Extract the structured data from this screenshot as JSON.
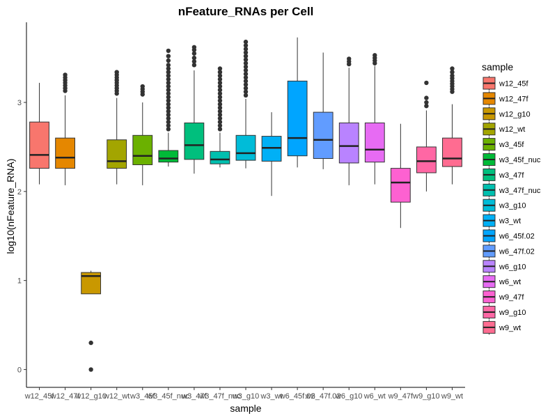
{
  "chart_data": {
    "type": "box",
    "title": "nFeature_RNAs per Cell",
    "xlabel": "sample",
    "ylabel": "log10(nFeature_RNA)",
    "ylim": [
      -0.2,
      3.9
    ],
    "yticks": [
      0,
      1,
      2,
      3
    ],
    "legend_title": "sample",
    "legend_position": "right",
    "grid": false,
    "categories": [
      "w12_45f",
      "w12_47f",
      "w12_g10",
      "w12_wt",
      "w3_45f",
      "w3_45f_nuc",
      "w3_47f",
      "w3_47f_nuc",
      "w3_g10",
      "w3_wt",
      "w6_45f.02",
      "w6_47f.02",
      "w6_g10",
      "w6_wt",
      "w9_47f",
      "w9_g10",
      "w9_wt"
    ],
    "x_tick_labels": [
      "w12_45f",
      "w12_47f",
      "w12_g10",
      "w12_wt",
      "w3_45f",
      "w3_45f_nuc",
      "w3_47f",
      "w3_47f_nuc",
      "w3_g10",
      "w3_wt",
      "w6_45f.02",
      "w6_47f.02",
      "w6_g10",
      "w6_wt",
      "w9_47f",
      "w9_g10",
      "w9_wt"
    ],
    "legend_labels": [
      "w12_45f",
      "w12_47f",
      "w12_g10",
      "w12_wt",
      "w3_45f",
      "w3_45f_nuc",
      "w3_47f",
      "w3_47f_nuc",
      "w3_g10",
      "w3_wt",
      "w6_45f.02",
      "w6_47f.02",
      "w6_g10",
      "w6_wt",
      "w9_47f",
      "w9_g10",
      "w9_wt"
    ],
    "colors": [
      "#F8766D",
      "#E58700",
      "#C99800",
      "#A3A500",
      "#6BB100",
      "#00BA38",
      "#00BF7D",
      "#00C0AF",
      "#00BCD8",
      "#00B0F6",
      "#00A5FF",
      "#619CFF",
      "#B983FF",
      "#E76BF3",
      "#FD61D1",
      "#FF67A4",
      "#FF6C91"
    ],
    "boxes": [
      {
        "whisker_low": 2.08,
        "q1": 2.26,
        "median": 2.41,
        "q3": 2.78,
        "whisker_high": 3.22,
        "outliers": []
      },
      {
        "whisker_low": 2.07,
        "q1": 2.26,
        "median": 2.38,
        "q3": 2.6,
        "whisker_high": 3.08,
        "outliers": [
          3.13,
          3.16,
          3.19,
          3.22,
          3.25,
          3.28,
          3.31
        ]
      },
      {
        "whisker_low": 0.85,
        "q1": 0.85,
        "median": 1.05,
        "q3": 1.09,
        "whisker_high": 1.11,
        "outliers": [
          0.3,
          0.0
        ]
      },
      {
        "whisker_low": 2.08,
        "q1": 2.26,
        "median": 2.34,
        "q3": 2.58,
        "whisker_high": 3.05,
        "outliers": [
          3.1,
          3.13,
          3.16,
          3.19,
          3.22,
          3.25,
          3.28,
          3.31,
          3.34
        ]
      },
      {
        "whisker_low": 2.07,
        "q1": 2.3,
        "median": 2.4,
        "q3": 2.63,
        "whisker_high": 3.0,
        "outliers": [
          3.09,
          3.12,
          3.15,
          3.18
        ]
      },
      {
        "whisker_low": 2.28,
        "q1": 2.33,
        "median": 2.37,
        "q3": 2.46,
        "whisker_high": 2.66,
        "outliers": [
          2.7,
          2.74,
          2.78,
          2.82,
          2.86,
          2.9,
          2.94,
          2.98,
          3.02,
          3.06,
          3.1,
          3.14,
          3.18,
          3.22,
          3.26,
          3.3,
          3.34,
          3.38,
          3.42,
          3.47,
          3.52,
          3.58
        ]
      },
      {
        "whisker_low": 2.2,
        "q1": 2.36,
        "median": 2.52,
        "q3": 2.77,
        "whisker_high": 3.36,
        "outliers": [
          3.42,
          3.46,
          3.5,
          3.55,
          3.59,
          3.62
        ]
      },
      {
        "whisker_low": 2.27,
        "q1": 2.31,
        "median": 2.36,
        "q3": 2.45,
        "whisker_high": 2.66,
        "outliers": [
          2.7,
          2.74,
          2.78,
          2.82,
          2.86,
          2.9,
          2.94,
          2.98,
          3.02,
          3.06,
          3.1,
          3.14,
          3.18,
          3.22,
          3.26,
          3.3,
          3.34,
          3.38
        ]
      },
      {
        "whisker_low": 2.26,
        "q1": 2.35,
        "median": 2.43,
        "q3": 2.63,
        "whisker_high": 3.04,
        "outliers": [
          3.08,
          3.12,
          3.16,
          3.2,
          3.24,
          3.28,
          3.32,
          3.36,
          3.4,
          3.44,
          3.48,
          3.52,
          3.56,
          3.6,
          3.64,
          3.68
        ]
      },
      {
        "whisker_low": 1.95,
        "q1": 2.34,
        "median": 2.49,
        "q3": 2.62,
        "whisker_high": 2.89,
        "outliers": []
      },
      {
        "whisker_low": 2.27,
        "q1": 2.4,
        "median": 2.6,
        "q3": 3.24,
        "whisker_high": 3.73,
        "outliers": []
      },
      {
        "whisker_low": 2.25,
        "q1": 2.37,
        "median": 2.58,
        "q3": 2.89,
        "whisker_high": 3.56,
        "outliers": []
      },
      {
        "whisker_low": 2.07,
        "q1": 2.32,
        "median": 2.51,
        "q3": 2.77,
        "whisker_high": 3.39,
        "outliers": [
          3.43,
          3.46,
          3.49
        ]
      },
      {
        "whisker_low": 2.08,
        "q1": 2.33,
        "median": 2.47,
        "q3": 2.77,
        "whisker_high": 3.41,
        "outliers": [
          3.44,
          3.47,
          3.5,
          3.53
        ]
      },
      {
        "whisker_low": 1.59,
        "q1": 1.88,
        "median": 2.1,
        "q3": 2.26,
        "whisker_high": 2.76,
        "outliers": []
      },
      {
        "whisker_low": 2.0,
        "q1": 2.21,
        "median": 2.34,
        "q3": 2.5,
        "whisker_high": 2.91,
        "outliers": [
          2.96,
          3.0,
          3.05,
          3.22
        ]
      },
      {
        "whisker_low": 2.08,
        "q1": 2.28,
        "median": 2.37,
        "q3": 2.6,
        "whisker_high": 2.98,
        "outliers": [
          3.12,
          3.15,
          3.18,
          3.21,
          3.24,
          3.27,
          3.3,
          3.34,
          3.38
        ]
      }
    ]
  }
}
